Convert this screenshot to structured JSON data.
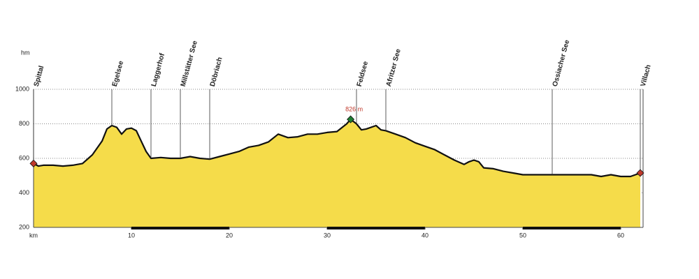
{
  "chart_data": {
    "type": "area",
    "y_label": "hm",
    "x_label": "km",
    "xlim": [
      0,
      62
    ],
    "ylim": [
      200,
      1000
    ],
    "xticks": [
      10,
      20,
      30,
      40,
      50,
      60
    ],
    "yticks": [
      200,
      400,
      600,
      800,
      1000
    ],
    "grid": true,
    "color": "#f5dc4a",
    "line_color": "#111111",
    "x": [
      0,
      0.5,
      1,
      2,
      3,
      4,
      5,
      6,
      7,
      7.5,
      8,
      8.5,
      9,
      9.5,
      10,
      10.5,
      11,
      11.5,
      12,
      13,
      14,
      15,
      16,
      17,
      18,
      19,
      20,
      21,
      22,
      23,
      24,
      25,
      25.5,
      26,
      27,
      28,
      29,
      30,
      31,
      32,
      32.4,
      33,
      33.5,
      34,
      35,
      35.5,
      36,
      37,
      38,
      39,
      40,
      41,
      42,
      43,
      44,
      44.5,
      45,
      45.5,
      46,
      47,
      48,
      49,
      50,
      51,
      52,
      53,
      54,
      55,
      56,
      57,
      58,
      59,
      60,
      61,
      62
    ],
    "values": [
      570,
      555,
      560,
      560,
      555,
      560,
      570,
      620,
      700,
      770,
      790,
      780,
      740,
      770,
      775,
      760,
      700,
      640,
      600,
      605,
      600,
      600,
      610,
      600,
      595,
      610,
      625,
      640,
      665,
      675,
      695,
      740,
      730,
      720,
      725,
      740,
      740,
      750,
      755,
      800,
      826,
      800,
      765,
      770,
      790,
      765,
      760,
      740,
      720,
      690,
      670,
      650,
      620,
      590,
      565,
      580,
      590,
      580,
      545,
      540,
      525,
      515,
      505,
      505,
      505,
      505,
      505,
      505,
      505,
      505,
      495,
      505,
      495,
      495,
      515
    ],
    "waypoints": [
      {
        "name": "Spittal",
        "x": 0
      },
      {
        "name": "Egelsee",
        "x": 8
      },
      {
        "name": "Laggerhof",
        "x": 12
      },
      {
        "name": "Millstätter See",
        "x": 15
      },
      {
        "name": "Döbriach",
        "x": 18
      },
      {
        "name": "Feldsee",
        "x": 33
      },
      {
        "name": "Afritzer See",
        "x": 36
      },
      {
        "name": "Ossiacher See",
        "x": 53
      },
      {
        "name": "Villach",
        "x": 62
      }
    ],
    "markers": [
      {
        "x": 0,
        "y": 570,
        "color": "#c0392b"
      },
      {
        "x": 32.4,
        "y": 826,
        "color": "#1e7d32",
        "label": "826 m"
      },
      {
        "x": 62,
        "y": 515,
        "color": "#c0392b"
      }
    ]
  }
}
